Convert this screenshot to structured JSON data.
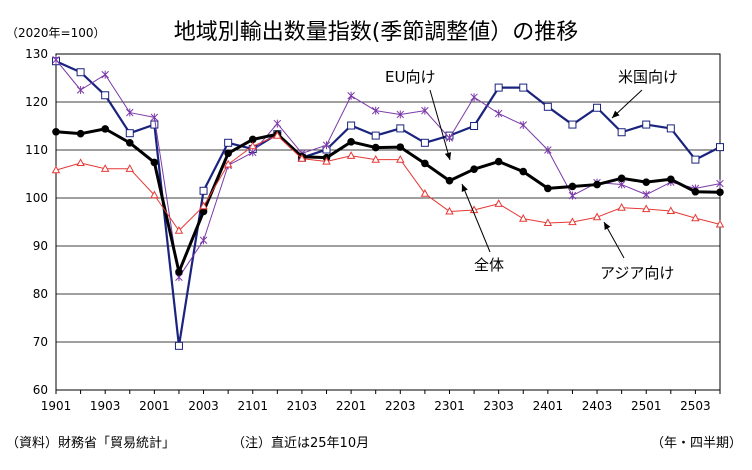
{
  "header": {
    "title": "地域別輸出数量指数(季節調整値）の推移",
    "unit_label": "（2020年=100）"
  },
  "footer": {
    "source": "（資料）財務省「貿易統計」",
    "note": "（注）直近は25年10月",
    "period_label": "（年・四半期）"
  },
  "chart_data": {
    "type": "line",
    "title": "地域別輸出数量指数(季節調整値）の推移",
    "xlabel": "（年・四半期）",
    "ylabel": "（2020年=100）",
    "ylim": [
      60,
      130
    ],
    "yticks": [
      60,
      70,
      80,
      90,
      100,
      110,
      120,
      130
    ],
    "grid": true,
    "x": [
      "1901",
      "1902",
      "1903",
      "1904",
      "2001",
      "2002",
      "2003",
      "2004",
      "2101",
      "2102",
      "2103",
      "2104",
      "2201",
      "2202",
      "2203",
      "2204",
      "2301",
      "2302",
      "2303",
      "2304",
      "2401",
      "2402",
      "2403",
      "2404",
      "2501",
      "2502",
      "2503",
      "2504"
    ],
    "x_tick_labels": [
      "1901",
      "1903",
      "2001",
      "2003",
      "2101",
      "2103",
      "2201",
      "2203",
      "2301",
      "2303",
      "2401",
      "2403",
      "2501",
      "2503"
    ],
    "series": [
      {
        "name": "米国向け",
        "color": "#1a237e",
        "marker": "square",
        "line_width": 2.2,
        "values": [
          128.5,
          126.2,
          121.4,
          113.5,
          115.3,
          69.2,
          101.5,
          111.5,
          110.2,
          113.3,
          108.4,
          110.1,
          115.1,
          113.0,
          114.5,
          111.5,
          113.0,
          115.0,
          123.0,
          123.0,
          119.0,
          115.3,
          118.8,
          113.7,
          115.3,
          114.5,
          108.0,
          110.6
        ]
      },
      {
        "name": "EU向け",
        "color": "#7b3aa8",
        "marker": "asterisk",
        "line_width": 1,
        "values": [
          128.8,
          122.5,
          125.7,
          117.8,
          116.8,
          83.5,
          91.2,
          106.8,
          109.5,
          115.5,
          109.3,
          111.0,
          121.3,
          118.2,
          117.4,
          118.2,
          112.5,
          121.0,
          117.6,
          115.2,
          110.0,
          100.5,
          103.2,
          102.8,
          100.7,
          103.3,
          102.0,
          103.0
        ]
      },
      {
        "name": "全体",
        "color": "#000000",
        "marker": "circle",
        "line_width": 3,
        "values": [
          113.8,
          113.4,
          114.4,
          111.5,
          107.4,
          84.6,
          97.2,
          109.3,
          112.2,
          113.3,
          108.6,
          108.4,
          111.7,
          110.5,
          110.6,
          107.2,
          103.6,
          106.0,
          107.6,
          105.5,
          102.0,
          102.4,
          102.8,
          104.1,
          103.3,
          103.9,
          101.3,
          101.2
        ]
      },
      {
        "name": "アジア向け",
        "color": "#e53935",
        "marker": "triangle",
        "line_width": 1,
        "values": [
          105.8,
          107.3,
          106.1,
          106.1,
          100.6,
          93.2,
          98.3,
          107.0,
          110.8,
          113.0,
          108.2,
          107.6,
          108.8,
          108.0,
          108.0,
          100.9,
          97.2,
          97.5,
          98.8,
          95.7,
          94.8,
          95.0,
          96.0,
          98.0,
          97.7,
          97.3,
          95.8,
          94.5
        ]
      }
    ],
    "annotations": [
      {
        "text": "EU向け",
        "series": "EU向け"
      },
      {
        "text": "米国向け",
        "series": "米国向け"
      },
      {
        "text": "全体",
        "series": "全体"
      },
      {
        "text": "アジア向け",
        "series": "アジア向け"
      }
    ]
  }
}
